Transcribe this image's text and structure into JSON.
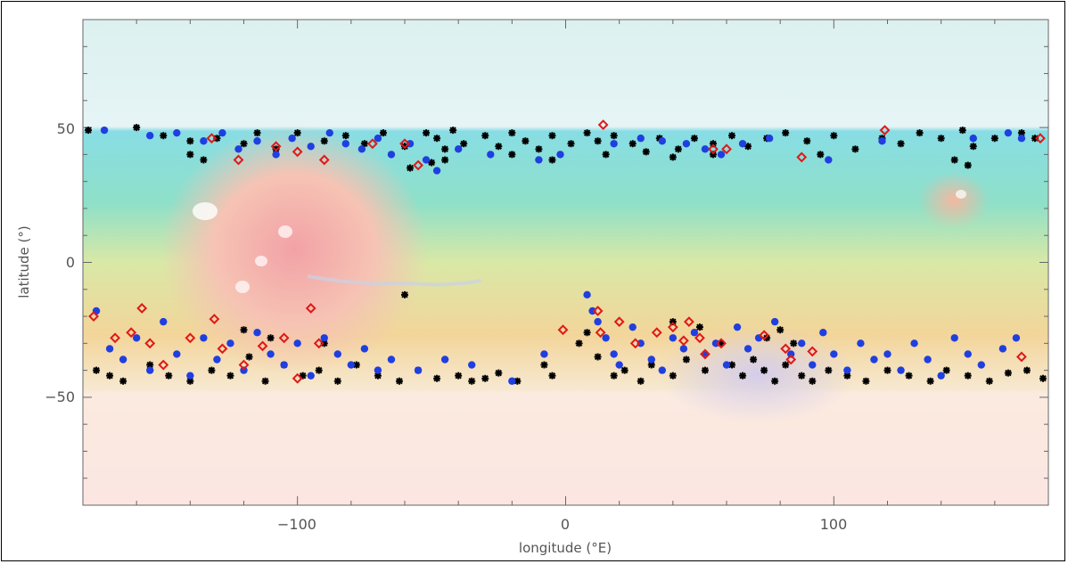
{
  "chart_data": {
    "type": "scatter",
    "title": "",
    "xlabel": "longitude (°E)",
    "ylabel": "latitude (°)",
    "xlim": [
      -180,
      180
    ],
    "ylim": [
      -90,
      90
    ],
    "x_ticks": [
      -100,
      0,
      100
    ],
    "y_ticks": [
      -50,
      0,
      50
    ],
    "x_tick_labels": [
      "−100",
      "0",
      "100"
    ],
    "y_tick_labels": [
      "−50",
      "0",
      "50"
    ],
    "background": "Mars elevation shaded-relief map",
    "grid": false,
    "legend": "none",
    "colors": {
      "black_marker": "#000000",
      "blue_marker": "#1f3fe0",
      "red_marker": "#e01818",
      "frame": "#000000",
      "axis_text": "#555555"
    },
    "series": [
      {
        "marker": "asterisk",
        "color": "#000000",
        "points": [
          [
            -178,
            49
          ],
          [
            -160,
            50
          ],
          [
            -150,
            47
          ],
          [
            -140,
            45
          ],
          [
            -130,
            46
          ],
          [
            -120,
            44
          ],
          [
            -115,
            48
          ],
          [
            -108,
            42
          ],
          [
            -100,
            48
          ],
          [
            -90,
            45
          ],
          [
            -82,
            47
          ],
          [
            -75,
            44
          ],
          [
            -68,
            48
          ],
          [
            -60,
            43
          ],
          [
            -52,
            48
          ],
          [
            -48,
            46
          ],
          [
            -45,
            42
          ],
          [
            -42,
            49
          ],
          [
            -38,
            44
          ],
          [
            -30,
            47
          ],
          [
            -25,
            43
          ],
          [
            -20,
            48
          ],
          [
            -15,
            45
          ],
          [
            -10,
            42
          ],
          [
            -5,
            47
          ],
          [
            2,
            44
          ],
          [
            8,
            48
          ],
          [
            12,
            45
          ],
          [
            18,
            47
          ],
          [
            25,
            44
          ],
          [
            35,
            46
          ],
          [
            42,
            42
          ],
          [
            48,
            46
          ],
          [
            55,
            44
          ],
          [
            62,
            47
          ],
          [
            68,
            43
          ],
          [
            75,
            46
          ],
          [
            82,
            48
          ],
          [
            90,
            45
          ],
          [
            100,
            47
          ],
          [
            108,
            42
          ],
          [
            118,
            46
          ],
          [
            125,
            44
          ],
          [
            132,
            48
          ],
          [
            140,
            46
          ],
          [
            148,
            49
          ],
          [
            152,
            43
          ],
          [
            160,
            46
          ],
          [
            170,
            48
          ],
          [
            175,
            46
          ],
          [
            -140,
            40
          ],
          [
            -135,
            38
          ],
          [
            -58,
            35
          ],
          [
            -50,
            37
          ],
          [
            -45,
            38
          ],
          [
            -20,
            40
          ],
          [
            -5,
            38
          ],
          [
            15,
            40
          ],
          [
            30,
            41
          ],
          [
            40,
            39
          ],
          [
            55,
            40
          ],
          [
            95,
            40
          ],
          [
            145,
            38
          ],
          [
            150,
            36
          ],
          [
            -175,
            -40
          ],
          [
            -170,
            -42
          ],
          [
            -165,
            -44
          ],
          [
            -155,
            -38
          ],
          [
            -148,
            -42
          ],
          [
            -140,
            -44
          ],
          [
            -132,
            -40
          ],
          [
            -125,
            -42
          ],
          [
            -118,
            -35
          ],
          [
            -112,
            -44
          ],
          [
            -105,
            -38
          ],
          [
            -98,
            -42
          ],
          [
            -92,
            -40
          ],
          [
            -85,
            -44
          ],
          [
            -78,
            -38
          ],
          [
            -70,
            -42
          ],
          [
            -62,
            -44
          ],
          [
            -55,
            -40
          ],
          [
            -48,
            -43
          ],
          [
            -40,
            -42
          ],
          [
            -35,
            -44
          ],
          [
            -30,
            -43
          ],
          [
            -25,
            -41
          ],
          [
            -18,
            -44
          ],
          [
            -8,
            -38
          ],
          [
            -5,
            -42
          ],
          [
            5,
            -30
          ],
          [
            8,
            -26
          ],
          [
            12,
            -35
          ],
          [
            18,
            -42
          ],
          [
            22,
            -40
          ],
          [
            28,
            -44
          ],
          [
            32,
            -38
          ],
          [
            40,
            -42
          ],
          [
            45,
            -36
          ],
          [
            52,
            -40
          ],
          [
            58,
            -30
          ],
          [
            62,
            -38
          ],
          [
            66,
            -42
          ],
          [
            70,
            -36
          ],
          [
            74,
            -40
          ],
          [
            78,
            -44
          ],
          [
            82,
            -38
          ],
          [
            88,
            -42
          ],
          [
            92,
            -44
          ],
          [
            98,
            -40
          ],
          [
            105,
            -42
          ],
          [
            112,
            -44
          ],
          [
            120,
            -40
          ],
          [
            128,
            -42
          ],
          [
            136,
            -44
          ],
          [
            142,
            -40
          ],
          [
            150,
            -42
          ],
          [
            158,
            -44
          ],
          [
            165,
            -41
          ],
          [
            172,
            -40
          ],
          [
            178,
            -43
          ],
          [
            -120,
            -25
          ],
          [
            -110,
            -28
          ],
          [
            -90,
            -30
          ],
          [
            -60,
            -12
          ],
          [
            40,
            -22
          ],
          [
            50,
            -24
          ],
          [
            75,
            -28
          ],
          [
            80,
            -25
          ],
          [
            85,
            -30
          ]
        ]
      },
      {
        "marker": "dot",
        "color": "#1f3fe0",
        "points": [
          [
            -172,
            49
          ],
          [
            -155,
            47
          ],
          [
            -145,
            48
          ],
          [
            -135,
            45
          ],
          [
            -128,
            48
          ],
          [
            -122,
            42
          ],
          [
            -115,
            45
          ],
          [
            -108,
            40
          ],
          [
            -102,
            46
          ],
          [
            -95,
            43
          ],
          [
            -88,
            48
          ],
          [
            -82,
            44
          ],
          [
            -76,
            42
          ],
          [
            -70,
            46
          ],
          [
            -65,
            40
          ],
          [
            -58,
            44
          ],
          [
            -52,
            38
          ],
          [
            -48,
            34
          ],
          [
            -40,
            42
          ],
          [
            -28,
            40
          ],
          [
            -10,
            38
          ],
          [
            -2,
            40
          ],
          [
            18,
            44
          ],
          [
            28,
            46
          ],
          [
            36,
            45
          ],
          [
            45,
            44
          ],
          [
            52,
            42
          ],
          [
            58,
            40
          ],
          [
            66,
            44
          ],
          [
            76,
            46
          ],
          [
            98,
            38
          ],
          [
            118,
            45
          ],
          [
            152,
            46
          ],
          [
            165,
            48
          ],
          [
            170,
            46
          ],
          [
            -175,
            -18
          ],
          [
            -170,
            -32
          ],
          [
            -165,
            -36
          ],
          [
            -160,
            -28
          ],
          [
            -155,
            -40
          ],
          [
            -150,
            -22
          ],
          [
            -145,
            -34
          ],
          [
            -140,
            -42
          ],
          [
            -135,
            -28
          ],
          [
            -130,
            -36
          ],
          [
            -125,
            -30
          ],
          [
            -120,
            -40
          ],
          [
            -115,
            -26
          ],
          [
            -110,
            -34
          ],
          [
            -105,
            -38
          ],
          [
            -100,
            -30
          ],
          [
            -95,
            -42
          ],
          [
            -90,
            -28
          ],
          [
            -85,
            -34
          ],
          [
            -80,
            -38
          ],
          [
            -75,
            -32
          ],
          [
            -70,
            -40
          ],
          [
            -65,
            -36
          ],
          [
            -55,
            -40
          ],
          [
            -45,
            -36
          ],
          [
            -35,
            -38
          ],
          [
            -20,
            -44
          ],
          [
            -8,
            -34
          ],
          [
            8,
            -12
          ],
          [
            10,
            -18
          ],
          [
            12,
            -22
          ],
          [
            15,
            -28
          ],
          [
            18,
            -34
          ],
          [
            20,
            -38
          ],
          [
            25,
            -24
          ],
          [
            28,
            -30
          ],
          [
            32,
            -36
          ],
          [
            36,
            -40
          ],
          [
            40,
            -28
          ],
          [
            44,
            -32
          ],
          [
            48,
            -26
          ],
          [
            52,
            -34
          ],
          [
            56,
            -30
          ],
          [
            60,
            -38
          ],
          [
            64,
            -24
          ],
          [
            68,
            -32
          ],
          [
            72,
            -28
          ],
          [
            78,
            -22
          ],
          [
            84,
            -34
          ],
          [
            88,
            -30
          ],
          [
            92,
            -38
          ],
          [
            96,
            -26
          ],
          [
            100,
            -34
          ],
          [
            105,
            -40
          ],
          [
            110,
            -30
          ],
          [
            115,
            -36
          ],
          [
            120,
            -34
          ],
          [
            125,
            -40
          ],
          [
            130,
            -30
          ],
          [
            135,
            -36
          ],
          [
            140,
            -42
          ],
          [
            145,
            -28
          ],
          [
            150,
            -34
          ],
          [
            155,
            -38
          ],
          [
            163,
            -32
          ],
          [
            168,
            -28
          ]
        ]
      },
      {
        "marker": "diamond",
        "color": "#e01818",
        "points": [
          [
            -176,
            -20
          ],
          [
            -168,
            -28
          ],
          [
            -162,
            -26
          ],
          [
            -158,
            -17
          ],
          [
            -155,
            -30
          ],
          [
            -150,
            -38
          ],
          [
            -140,
            -28
          ],
          [
            -131,
            -21
          ],
          [
            -128,
            -32
          ],
          [
            -120,
            -38
          ],
          [
            -113,
            -31
          ],
          [
            -105,
            -28
          ],
          [
            -100,
            -43
          ],
          [
            -95,
            -17
          ],
          [
            -92,
            -30
          ],
          [
            -132,
            46
          ],
          [
            -122,
            38
          ],
          [
            -108,
            43
          ],
          [
            -100,
            41
          ],
          [
            -90,
            38
          ],
          [
            -72,
            44
          ],
          [
            -60,
            44
          ],
          [
            -55,
            36
          ],
          [
            14,
            51
          ],
          [
            12,
            -18
          ],
          [
            -1,
            -25
          ],
          [
            13,
            -26
          ],
          [
            20,
            -22
          ],
          [
            26,
            -30
          ],
          [
            34,
            -26
          ],
          [
            40,
            -24
          ],
          [
            44,
            -29
          ],
          [
            46,
            -22
          ],
          [
            50,
            -28
          ],
          [
            52,
            -34
          ],
          [
            58,
            -30
          ],
          [
            74,
            -27
          ],
          [
            82,
            -32
          ],
          [
            84,
            -36
          ],
          [
            92,
            -33
          ],
          [
            55,
            42
          ],
          [
            60,
            42
          ],
          [
            88,
            39
          ],
          [
            119,
            49
          ],
          [
            177,
            46
          ],
          [
            170,
            -35
          ]
        ]
      }
    ]
  }
}
